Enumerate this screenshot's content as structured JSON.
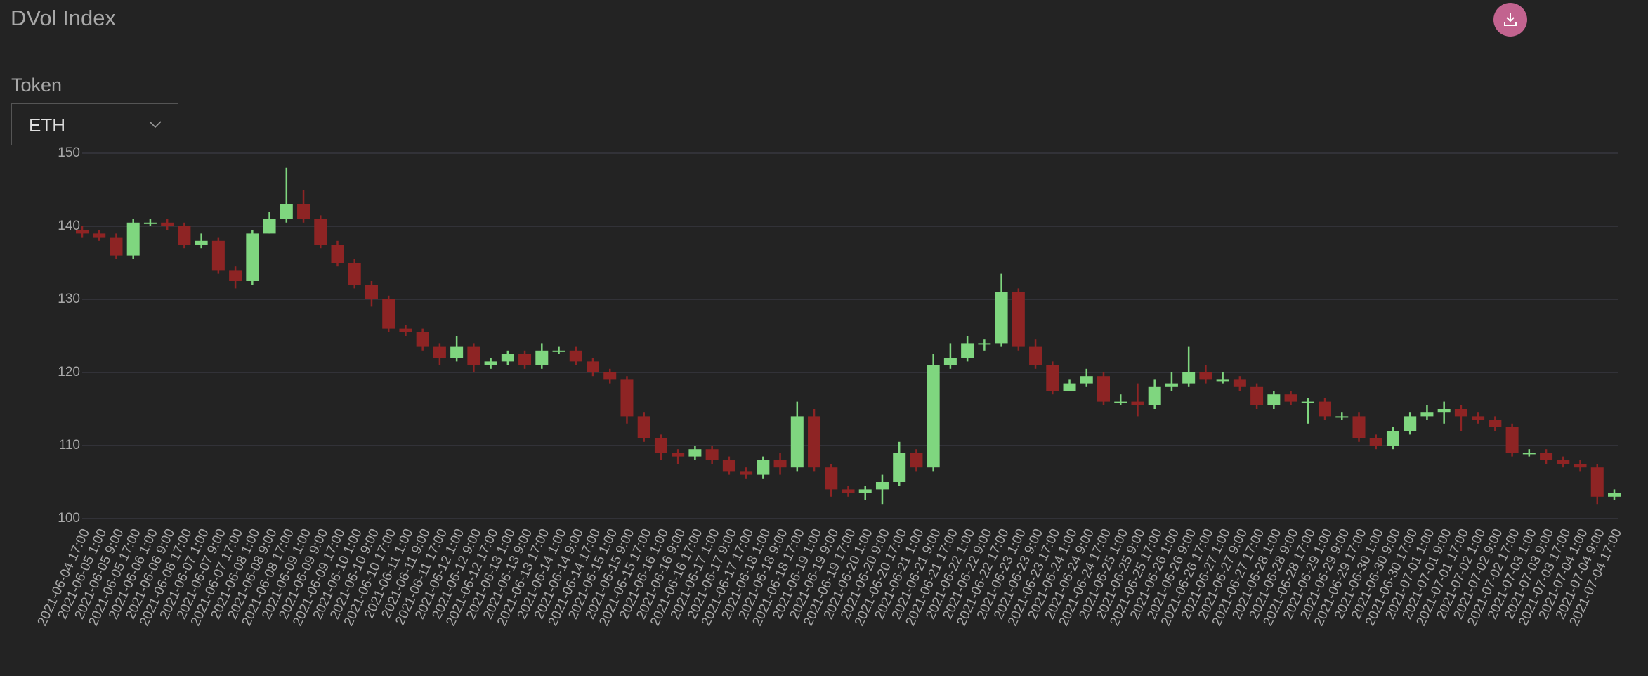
{
  "header": {
    "title": "DVol Index"
  },
  "controls": {
    "token_label": "Token",
    "token_value": "ETH"
  },
  "chart_data": {
    "type": "candlestick",
    "categories": [
      "2021-06-04 17:00",
      "2021-06-05 1:00",
      "2021-06-05 9:00",
      "2021-06-05 17:00",
      "2021-06-06 1:00",
      "2021-06-06 9:00",
      "2021-06-06 17:00",
      "2021-06-07 1:00",
      "2021-06-07 9:00",
      "2021-06-07 17:00",
      "2021-06-08 1:00",
      "2021-06-08 9:00",
      "2021-06-08 17:00",
      "2021-06-09 1:00",
      "2021-06-09 9:00",
      "2021-06-09 17:00",
      "2021-06-10 1:00",
      "2021-06-10 9:00",
      "2021-06-10 17:00",
      "2021-06-11 1:00",
      "2021-06-11 9:00",
      "2021-06-11 17:00",
      "2021-06-12 1:00",
      "2021-06-12 9:00",
      "2021-06-12 17:00",
      "2021-06-13 1:00",
      "2021-06-13 9:00",
      "2021-06-13 17:00",
      "2021-06-14 1:00",
      "2021-06-14 9:00",
      "2021-06-14 17:00",
      "2021-06-15 1:00",
      "2021-06-15 9:00",
      "2021-06-15 17:00",
      "2021-06-16 1:00",
      "2021-06-16 9:00",
      "2021-06-16 17:00",
      "2021-06-17 1:00",
      "2021-06-17 9:00",
      "2021-06-17 17:00",
      "2021-06-18 1:00",
      "2021-06-18 9:00",
      "2021-06-18 17:00",
      "2021-06-19 1:00",
      "2021-06-19 9:00",
      "2021-06-19 17:00",
      "2021-06-20 1:00",
      "2021-06-20 9:00",
      "2021-06-20 17:00",
      "2021-06-21 1:00",
      "2021-06-21 9:00",
      "2021-06-21 17:00",
      "2021-06-22 1:00",
      "2021-06-22 9:00",
      "2021-06-22 17:00",
      "2021-06-23 1:00",
      "2021-06-23 9:00",
      "2021-06-23 17:00",
      "2021-06-24 1:00",
      "2021-06-24 9:00",
      "2021-06-24 17:00",
      "2021-06-25 1:00",
      "2021-06-25 9:00",
      "2021-06-25 17:00",
      "2021-06-26 1:00",
      "2021-06-26 9:00",
      "2021-06-26 17:00",
      "2021-06-27 1:00",
      "2021-06-27 9:00",
      "2021-06-27 17:00",
      "2021-06-28 1:00",
      "2021-06-28 9:00",
      "2021-06-28 17:00",
      "2021-06-29 1:00",
      "2021-06-29 9:00",
      "2021-06-29 17:00",
      "2021-06-30 1:00",
      "2021-06-30 9:00",
      "2021-06-30 17:00",
      "2021-07-01 1:00",
      "2021-07-01 9:00",
      "2021-07-01 17:00",
      "2021-07-02 1:00",
      "2021-07-02 9:00",
      "2021-07-02 17:00",
      "2021-07-03 1:00",
      "2021-07-03 9:00",
      "2021-07-03 17:00",
      "2021-07-04 1:00",
      "2021-07-04 9:00",
      "2021-07-04 17:00"
    ],
    "open": [
      139.5,
      139,
      138.5,
      136,
      140.5,
      140.5,
      140,
      137.5,
      138,
      134,
      132.5,
      139,
      141,
      143,
      141,
      137.5,
      135,
      132,
      130,
      126,
      125.5,
      123.5,
      122,
      123.5,
      121,
      121.5,
      122.5,
      121,
      123,
      123,
      121.5,
      120,
      119,
      114,
      111,
      109,
      108.5,
      109.5,
      108,
      106.5,
      106,
      108,
      107,
      114,
      107,
      104,
      103.5,
      104,
      105,
      109,
      107,
      121,
      122,
      124,
      124,
      131,
      123.5,
      121,
      117.5,
      118.5,
      119.5,
      116,
      116,
      115.5,
      118,
      118.5,
      120,
      119,
      119,
      118,
      115.5,
      117,
      116,
      116,
      114,
      114,
      111,
      110,
      112,
      114,
      114.5,
      115,
      114,
      113.5,
      112.5,
      109,
      109,
      108,
      107.5,
      107,
      103
    ],
    "high": [
      140,
      139.5,
      139,
      141,
      141,
      141,
      140.5,
      139,
      138.5,
      134.5,
      139.5,
      142,
      148,
      145,
      141.5,
      138,
      135.5,
      132.5,
      130.5,
      126.5,
      126,
      124,
      125,
      124,
      122,
      123,
      123,
      124,
      123.5,
      123.5,
      122,
      120.5,
      119.5,
      114.5,
      111.5,
      109.5,
      110,
      110,
      108.5,
      107,
      108.5,
      109,
      116,
      115,
      107.5,
      104.5,
      104.5,
      106,
      110.5,
      109.5,
      122.5,
      124,
      125,
      124.5,
      133.5,
      131.5,
      124.5,
      121.5,
      119,
      120.5,
      120,
      117,
      118.5,
      119,
      120,
      123.5,
      121,
      120,
      119.5,
      118.5,
      117.5,
      117.5,
      116.5,
      116.5,
      114.5,
      114.5,
      111.5,
      112.5,
      114.5,
      115.5,
      116,
      115.5,
      114.5,
      114,
      113,
      109.5,
      109.5,
      108.5,
      108,
      107.5,
      104
    ],
    "low": [
      138.5,
      138,
      135.5,
      135.5,
      140,
      139.5,
      137,
      137,
      133.5,
      131.5,
      132,
      139,
      140.5,
      140.5,
      137,
      134.5,
      131.5,
      129,
      125.5,
      125,
      123,
      121,
      121.5,
      120,
      120.5,
      121,
      120.5,
      120.5,
      122.5,
      121,
      119.5,
      118.5,
      113,
      110.5,
      108,
      107.5,
      108,
      107.5,
      106,
      105.5,
      105.5,
      106,
      106.5,
      106.5,
      103,
      103,
      102.5,
      102,
      104.5,
      106.5,
      106.5,
      120.5,
      121.5,
      123,
      123.5,
      123,
      120.5,
      117,
      117.5,
      118,
      115.5,
      115.5,
      114,
      115,
      117.5,
      118,
      118.5,
      118.5,
      117.5,
      115,
      115,
      115.5,
      113,
      113.5,
      113.5,
      110.5,
      109.5,
      109.5,
      111.5,
      113.5,
      113,
      112,
      113,
      112,
      108.5,
      108.5,
      107.5,
      107,
      106.5,
      102,
      102.5
    ],
    "close": [
      139,
      138.5,
      136,
      140.5,
      140.5,
      140,
      137.5,
      138,
      134,
      132.5,
      139,
      141,
      143,
      141,
      137.5,
      135,
      132,
      130,
      126,
      125.5,
      123.5,
      122,
      123.5,
      121,
      121.5,
      122.5,
      121,
      123,
      123,
      121.5,
      120,
      119,
      114,
      111,
      109,
      108.5,
      109.5,
      108,
      106.5,
      106,
      108,
      107,
      114,
      107,
      104,
      103.5,
      104,
      105,
      109,
      107,
      121,
      122,
      124,
      124,
      131,
      123.5,
      121,
      117.5,
      118.5,
      119.5,
      116,
      116,
      115.5,
      118,
      118.5,
      120,
      119,
      119,
      118,
      115.5,
      117,
      116,
      116,
      114,
      114,
      111,
      110,
      112,
      114,
      114.5,
      115,
      114,
      113.5,
      112.5,
      109,
      109,
      108,
      107.5,
      107,
      103,
      103.5
    ],
    "up_color": "#7fd67f",
    "down_color": "#8e2424",
    "ylim": [
      100,
      150
    ],
    "yticks": [
      100,
      110,
      120,
      130,
      140,
      150
    ],
    "grid": true
  }
}
